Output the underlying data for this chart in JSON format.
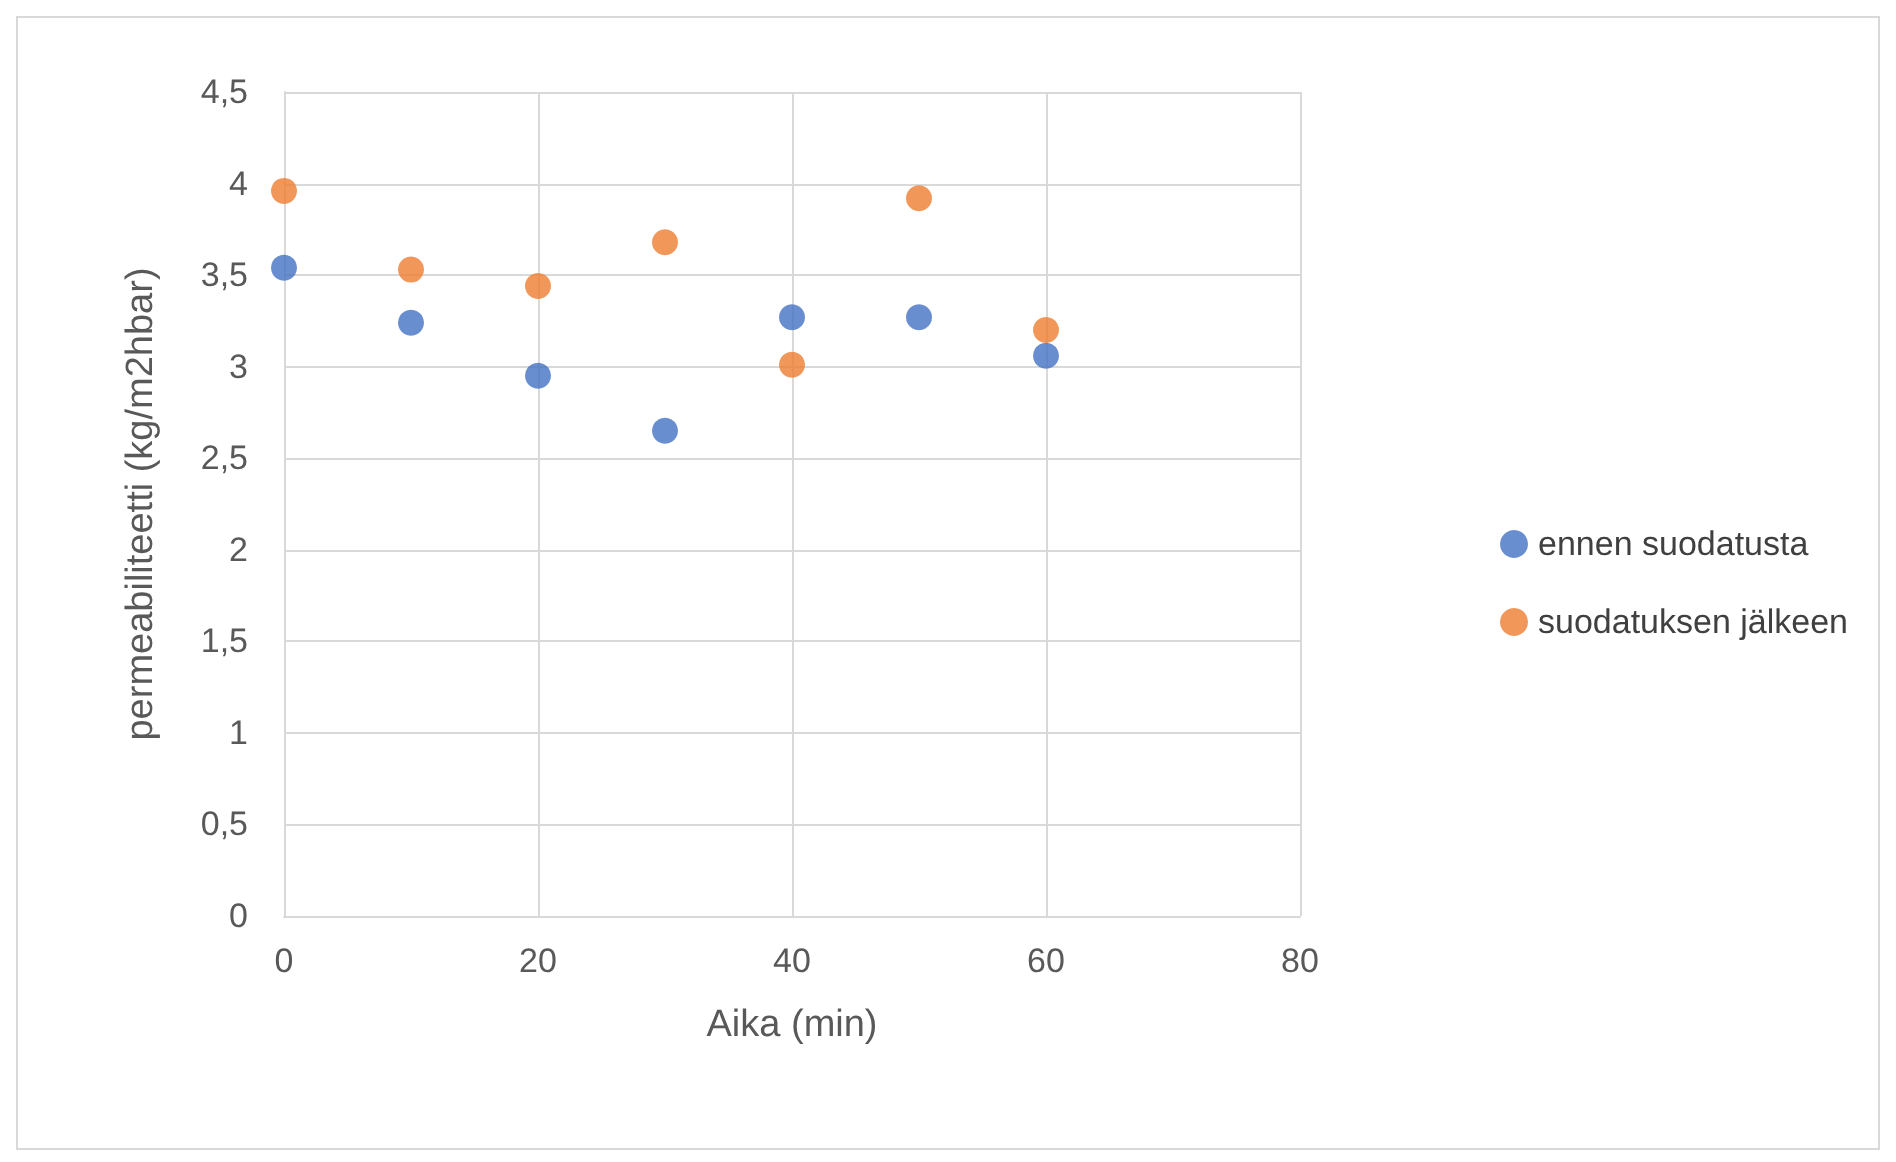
{
  "chart_data": {
    "type": "scatter",
    "xlabel": "Aika (min)",
    "ylabel": "permeabiliteetti (kg/m2hbar)",
    "x": [
      0,
      10,
      20,
      30,
      40,
      50,
      60
    ],
    "series": [
      {
        "name": "ennen suodatusta",
        "color": "#4472c4",
        "values": [
          3.54,
          3.24,
          2.95,
          2.65,
          3.27,
          3.27,
          3.06
        ]
      },
      {
        "name": "suodatuksen jälkeen",
        "color": "#ed7d31",
        "values": [
          3.96,
          3.53,
          3.44,
          3.68,
          3.01,
          3.92,
          3.2
        ]
      }
    ],
    "xlim": [
      0,
      80
    ],
    "xticks": [
      0,
      20,
      40,
      60,
      80
    ],
    "ylim": [
      0,
      4.5
    ],
    "yticks": [
      0,
      {
        "value": 0.5,
        "label": "0,5"
      },
      1,
      {
        "value": 1.5,
        "label": "1,5"
      },
      2,
      {
        "value": 2.5,
        "label": "2,5"
      },
      3,
      {
        "value": 3.5,
        "label": "3,5"
      },
      4,
      {
        "value": 4.5,
        "label": "4,5"
      }
    ],
    "grid": true,
    "legend": "right",
    "marker": "circle"
  }
}
